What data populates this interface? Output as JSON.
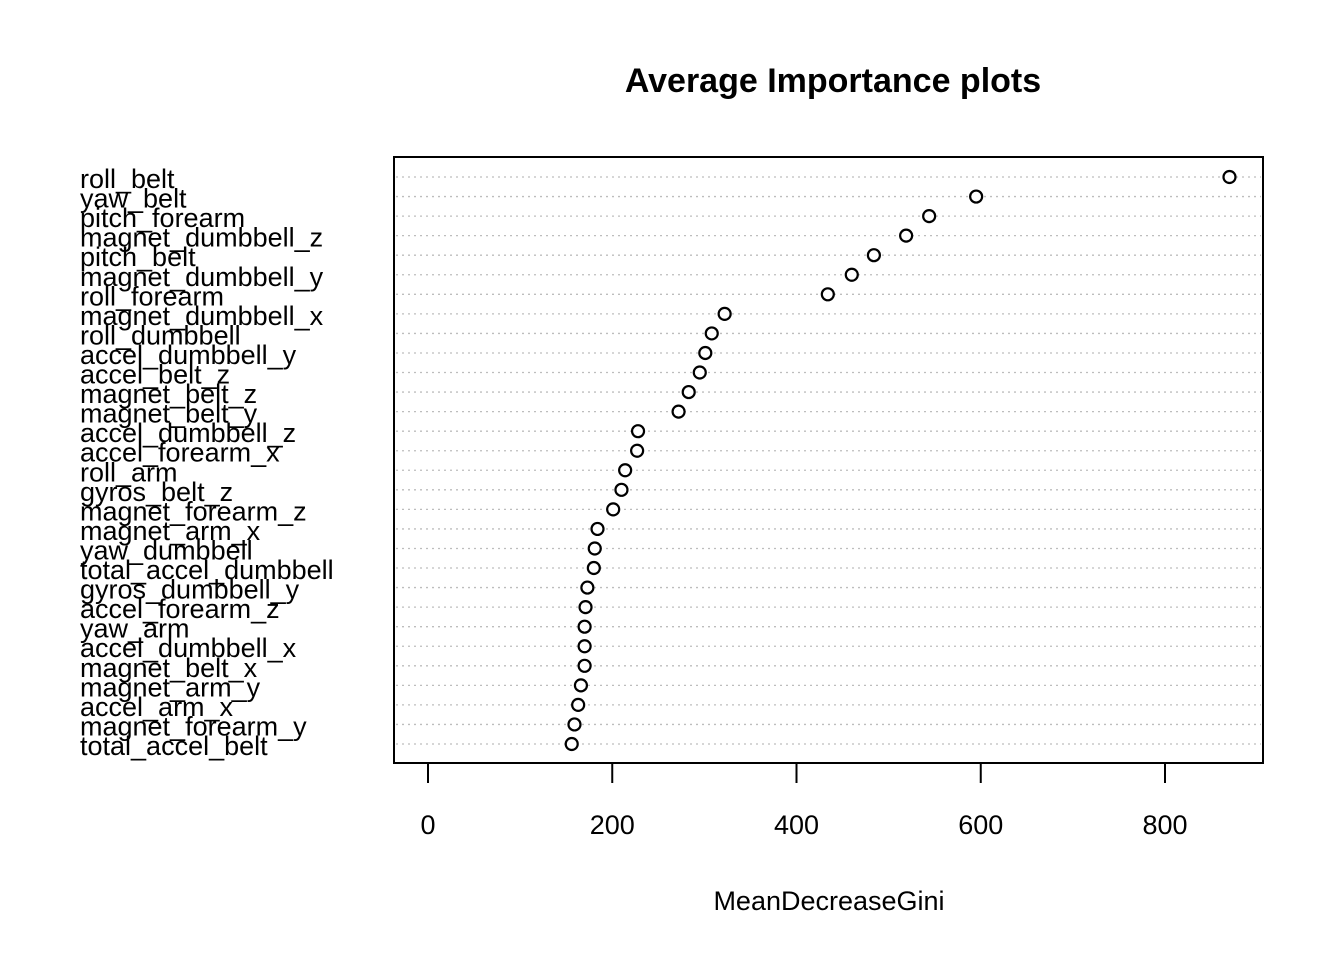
{
  "chart_data": {
    "type": "scatter",
    "title": "Average Importance plots",
    "xlabel": "MeanDecreaseGini",
    "ylabel": "",
    "xlim": [
      0,
      900
    ],
    "x_ticks": [
      0,
      200,
      400,
      600,
      800
    ],
    "grid": "horizontal dotted",
    "categories": [
      "roll_belt",
      "yaw_belt",
      "pitch_forearm",
      "magnet_dumbbell_z",
      "pitch_belt",
      "magnet_dumbbell_y",
      "roll_forearm",
      "magnet_dumbbell_x",
      "roll_dumbbell",
      "accel_dumbbell_y",
      "accel_belt_z",
      "magnet_belt_z",
      "magnet_belt_y",
      "accel_dumbbell_z",
      "accel_forearm_x",
      "roll_arm",
      "gyros_belt_z",
      "magnet_forearm_z",
      "magnet_arm_x",
      "yaw_dumbbell",
      "total_accel_dumbbell",
      "gyros_dumbbell_y",
      "accel_forearm_z",
      "yaw_arm",
      "accel_dumbbell_x",
      "magnet_belt_x",
      "magnet_arm_y",
      "accel_arm_x",
      "magnet_forearm_y",
      "total_accel_belt"
    ],
    "values": [
      870,
      595,
      544,
      519,
      484,
      460,
      434,
      322,
      308,
      301,
      295,
      283,
      272,
      228,
      227,
      214,
      210,
      201,
      184,
      181,
      180,
      173,
      171,
      170,
      170,
      170,
      166,
      163,
      159,
      156
    ]
  }
}
